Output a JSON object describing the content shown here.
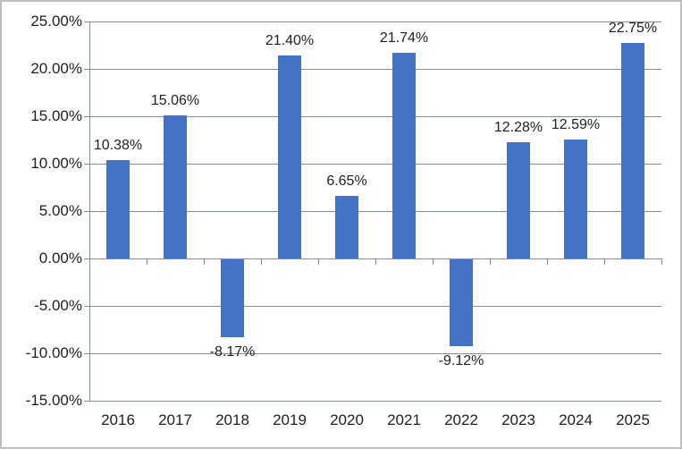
{
  "chart_data": {
    "type": "bar",
    "title": "",
    "xlabel": "",
    "ylabel": "",
    "categories": [
      "2016",
      "2017",
      "2018",
      "2019",
      "2020",
      "2021",
      "2022",
      "2023",
      "2024",
      "2025"
    ],
    "values": [
      10.38,
      15.06,
      -8.17,
      21.4,
      6.65,
      21.74,
      -9.12,
      12.28,
      12.59,
      22.75
    ],
    "value_labels": [
      "10.38%",
      "15.06%",
      "-8.17%",
      "21.40%",
      "6.65%",
      "21.74%",
      "-9.12%",
      "12.28%",
      "12.59%",
      "22.75%"
    ],
    "y_axis": {
      "min": -15,
      "max": 25,
      "step": 5,
      "tick_labels": [
        "25.00%",
        "20.00%",
        "15.00%",
        "10.00%",
        "5.00%",
        "0.00%",
        "-5.00%",
        "-10.00%",
        "-15.00%"
      ]
    },
    "legend": false,
    "grid": true,
    "colors": {
      "bar": "#4472C4",
      "gridline": "#878E95",
      "text": "#1F1F1F",
      "border": "#BFBFBF"
    }
  }
}
